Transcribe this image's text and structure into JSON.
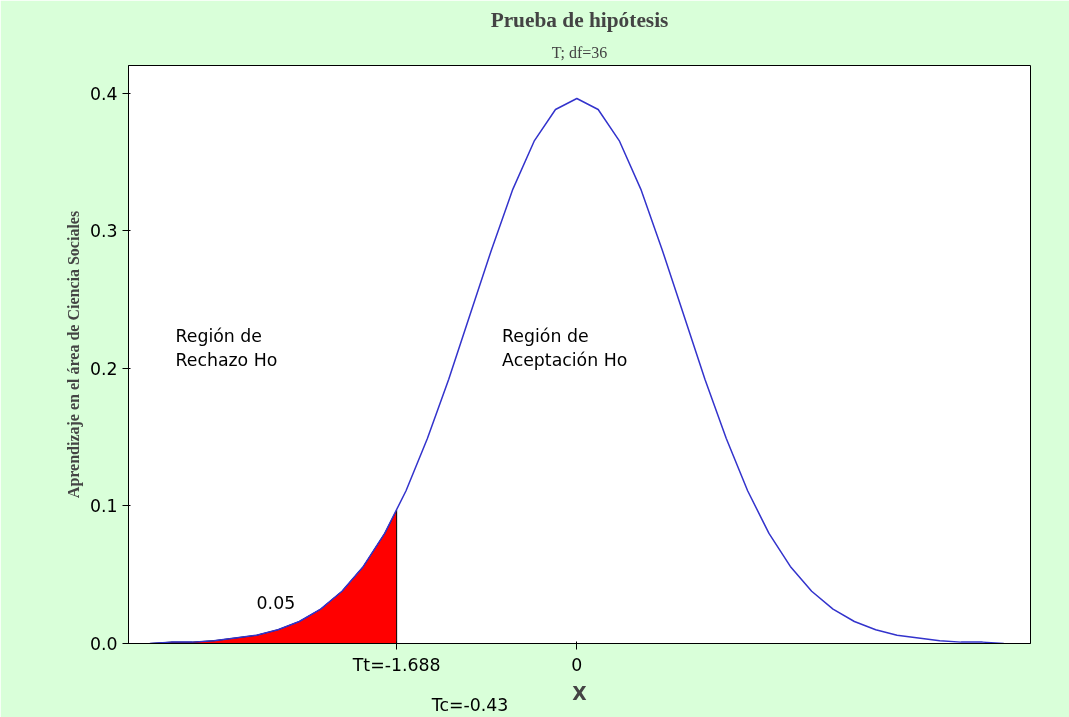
{
  "chart_data": {
    "type": "line",
    "title": "Prueba de hipótesis",
    "subtitle": "T; df=36",
    "xlabel": "X",
    "ylabel": "Aprendizaje en el área de Ciencia Sociales",
    "xlim": [
      -4.2,
      4.25
    ],
    "ylim": [
      0,
      0.42
    ],
    "xticks": [
      {
        "value": -1.688,
        "label": "Tt=-1.688"
      },
      0
    ],
    "yticks": [
      {
        "value": 0,
        "label": "0.0"
      },
      0.1,
      0.2,
      0.3,
      0.4
    ],
    "grid": false,
    "series": [
      {
        "type": "area",
        "color": "#ff0000",
        "x": [
          -4.0,
          -3.8,
          -3.6,
          -3.4,
          -3.2,
          -3.0,
          -2.8,
          -2.6,
          -2.4,
          -2.2,
          -2.0,
          -1.8,
          -1.688
        ],
        "values": [
          0.0,
          0.001,
          0.001,
          0.002,
          0.004,
          0.006,
          0.01,
          0.016,
          0.025,
          0.038,
          0.056,
          0.08,
          0.097
        ]
      },
      {
        "color": "#3333cc",
        "x": [
          -4.0,
          -3.8,
          -3.6,
          -3.4,
          -3.2,
          -3.0,
          -2.8,
          -2.6,
          -2.4,
          -2.2,
          -2.0,
          -1.8,
          -1.6,
          -1.4,
          -1.2,
          -1.0,
          -0.8,
          -0.6,
          -0.4,
          -0.2,
          0.0,
          0.2,
          0.4,
          0.6,
          0.8,
          1.0,
          1.2,
          1.4,
          1.6,
          1.8,
          2.0,
          2.2,
          2.4,
          2.6,
          2.8,
          3.0,
          3.2,
          3.4,
          3.6,
          3.8,
          4.0
        ],
        "values": [
          0.0,
          0.001,
          0.001,
          0.002,
          0.004,
          0.006,
          0.01,
          0.016,
          0.025,
          0.038,
          0.056,
          0.08,
          0.111,
          0.149,
          0.192,
          0.239,
          0.286,
          0.33,
          0.365,
          0.388,
          0.396,
          0.388,
          0.365,
          0.33,
          0.286,
          0.239,
          0.192,
          0.149,
          0.111,
          0.08,
          0.056,
          0.038,
          0.025,
          0.016,
          0.01,
          0.006,
          0.004,
          0.002,
          0.001,
          0.001,
          0.0
        ]
      }
    ],
    "annotations": [
      "Región de\nRechazo Ho",
      "Región de\nAceptación Ho",
      "0.05",
      "Tc=-0.43"
    ]
  }
}
